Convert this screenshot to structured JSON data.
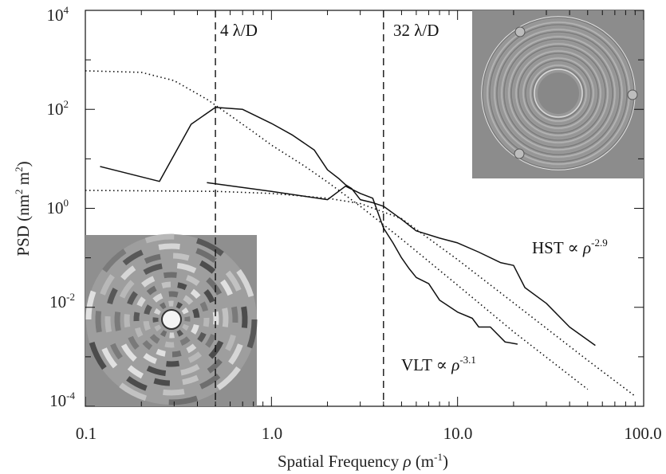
{
  "chart_data": {
    "type": "line",
    "xscale": "log",
    "yscale": "log",
    "xlim": [
      0.1,
      100.0
    ],
    "ylim": [
      0.0001,
      10000
    ],
    "xlabel": "Spatial Frequency",
    "xlabel_symbol": "ρ",
    "xlabel_unit_base": "(m",
    "xlabel_unit_exp": "-1",
    "xlabel_unit_close": ")",
    "ylabel": "PSD",
    "ylabel_unit_open": "(nm",
    "ylabel_unit_exp1": "2",
    "ylabel_unit_mid": " m",
    "ylabel_unit_exp2": "2",
    "ylabel_unit_close": ")",
    "x_ticks": [
      {
        "value": 0.1,
        "label": "0.1"
      },
      {
        "value": 1.0,
        "label": "1.0"
      },
      {
        "value": 10.0,
        "label": "10.0"
      },
      {
        "value": 100.0,
        "label": "100.0"
      }
    ],
    "y_ticks": [
      {
        "value": 0.0001,
        "base": "10",
        "exp": "-4"
      },
      {
        "value": 0.01,
        "base": "10",
        "exp": "-2"
      },
      {
        "value": 1,
        "base": "10",
        "exp": "0"
      },
      {
        "value": 100,
        "base": "10",
        "exp": "2"
      },
      {
        "value": 10000,
        "base": "10",
        "exp": "4"
      }
    ],
    "vlines": [
      {
        "x": 0.5,
        "label": "4 λ/D"
      },
      {
        "x": 4.0,
        "label": "32 λ/D"
      }
    ],
    "series": [
      {
        "name": "HST",
        "style": "solid",
        "x": [
          0.12,
          0.25,
          0.37,
          0.5,
          0.7,
          1.0,
          1.3,
          1.7,
          2.0,
          2.3,
          2.5,
          2.7,
          3.0,
          3.5,
          4.0,
          5.0,
          6.0,
          8.0,
          10.0,
          13.0,
          17.0,
          20.0,
          23.0,
          30.0,
          40.0,
          55.0
        ],
        "y": [
          7.0,
          3.5,
          50.0,
          110.0,
          100.0,
          52.0,
          30.0,
          15.0,
          6.0,
          4.0,
          3.0,
          2.5,
          1.5,
          1.3,
          1.1,
          0.6,
          0.35,
          0.25,
          0.2,
          0.13,
          0.08,
          0.07,
          0.025,
          0.012,
          0.004,
          0.0017
        ]
      },
      {
        "name": "VLT",
        "style": "solid",
        "x": [
          0.45,
          1.0,
          2.0,
          2.5,
          3.0,
          3.5,
          4.0,
          4.5,
          5.0,
          5.5,
          6.0,
          7.0,
          8.0,
          10.0,
          12.0,
          13.0,
          15.0,
          18.0,
          21.0
        ],
        "y": [
          3.3,
          2.2,
          1.5,
          2.8,
          2.0,
          1.6,
          0.4,
          0.2,
          0.1,
          0.06,
          0.04,
          0.03,
          0.014,
          0.008,
          0.006,
          0.004,
          0.004,
          0.002,
          0.0018
        ]
      },
      {
        "name": "",
        "style": "dotted",
        "x": [
          0.1,
          0.2,
          0.3,
          0.45,
          0.6,
          0.8,
          1.0,
          1.5,
          2.0,
          3.0,
          5.0,
          10.0,
          20.0,
          50.0
        ],
        "y": [
          600,
          560,
          380,
          160,
          75,
          35,
          19,
          7.2,
          3.4,
          1.1,
          0.24,
          0.028,
          0.0032,
          0.00022
        ]
      },
      {
        "name": "",
        "style": "dotted",
        "x": [
          0.1,
          0.5,
          1.0,
          2.0,
          3.0,
          5.0,
          10.0,
          20.0,
          50.0,
          90.0
        ],
        "y": [
          2.3,
          2.2,
          2.0,
          1.6,
          1.25,
          0.62,
          0.092,
          0.0123,
          0.00085,
          0.00016
        ]
      }
    ],
    "annotations": [
      {
        "prefix": "HST ∝ ",
        "sym": "ρ",
        "exp": "-2.9",
        "x": 18.0,
        "y": 0.3
      },
      {
        "prefix": "VLT ∝ ",
        "sym": "ρ",
        "exp": "-3.1",
        "x": 5.8,
        "y": 0.0006
      }
    ],
    "insets": [
      {
        "label": "HST mirror map",
        "type": "concentric-rings-fine"
      },
      {
        "label": "VLT mirror map",
        "type": "concentric-rings-coarse"
      }
    ],
    "grid": false,
    "legend": "none"
  }
}
